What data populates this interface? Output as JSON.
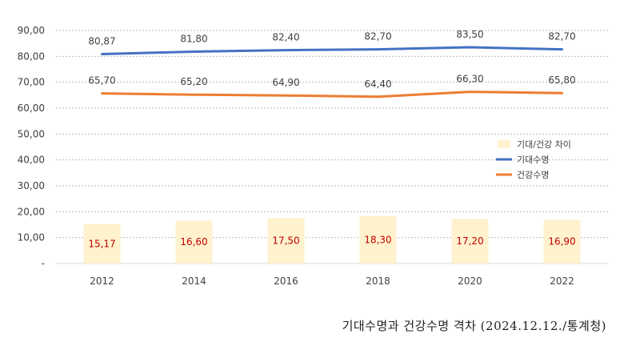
{
  "chart_data": {
    "type": "bar+line",
    "categories": [
      "2012",
      "2014",
      "2016",
      "2018",
      "2020",
      "2022"
    ],
    "ylim": [
      0,
      90
    ],
    "yticks": [
      {
        "value": 0,
        "label": "-"
      },
      {
        "value": 10,
        "label": "10,00"
      },
      {
        "value": 20,
        "label": "20,00"
      },
      {
        "value": 30,
        "label": "30,00"
      },
      {
        "value": 40,
        "label": "40,00"
      },
      {
        "value": 50,
        "label": "50,00"
      },
      {
        "value": 60,
        "label": "60,00"
      },
      {
        "value": 70,
        "label": "70,00"
      },
      {
        "value": 80,
        "label": "80,00"
      },
      {
        "value": 90,
        "label": "90,00"
      }
    ],
    "grid": true,
    "legend_position": "right",
    "series": [
      {
        "name": "기대/건강 차이",
        "kind": "bar",
        "color": "#fff2cc",
        "values": [
          15.17,
          16.6,
          17.5,
          18.3,
          17.2,
          16.9
        ],
        "labels": [
          "15,17",
          "16,60",
          "17,50",
          "18,30",
          "17,20",
          "16,90"
        ],
        "label_color": "#c00000"
      },
      {
        "name": "기대수명",
        "kind": "line",
        "color": "#4472c4",
        "values": [
          80.87,
          81.8,
          82.4,
          82.7,
          83.5,
          82.7
        ],
        "labels": [
          "80,87",
          "81,80",
          "82,40",
          "82,70",
          "83,50",
          "82,70"
        ]
      },
      {
        "name": "건강수명",
        "kind": "line",
        "color": "#ed7d31",
        "values": [
          65.7,
          65.2,
          64.9,
          64.4,
          66.3,
          65.8
        ],
        "labels": [
          "65,70",
          "65,20",
          "64,90",
          "64,40",
          "66,30",
          "65,80"
        ]
      }
    ]
  },
  "caption": "기대수명과 건강수명 격차 (2024.12.12./통계청)"
}
